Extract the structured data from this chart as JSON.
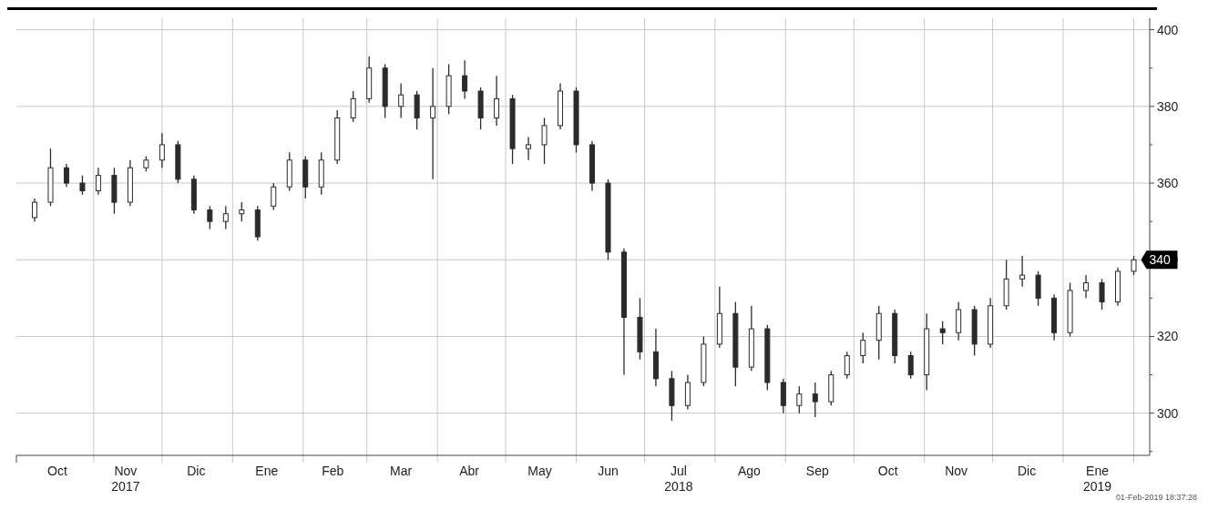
{
  "chart_data": {
    "type": "candlestick",
    "color": "#2b2b2b",
    "grid": true,
    "xlim": [
      "2017-09-28",
      "2019-02-08"
    ],
    "ylim": [
      289,
      403
    ],
    "yticks": [
      {
        "value": 290,
        "label": null
      },
      300,
      {
        "value": 310,
        "label": null
      },
      320,
      {
        "value": 330,
        "label": null
      },
      340,
      {
        "value": 350,
        "label": null
      },
      360,
      {
        "value": 370,
        "label": null
      },
      380,
      {
        "value": 390,
        "label": null
      },
      400
    ],
    "xticks": [
      {
        "value": "2017-10-16",
        "label": "Oct"
      },
      {
        "value": "2017-11-01",
        "label": null
      },
      {
        "value": "2017-11-15",
        "label": "Nov\n2017"
      },
      {
        "value": "2017-12-01",
        "label": null
      },
      {
        "value": "2017-12-16",
        "label": "Dic"
      },
      {
        "value": "2018-01-01",
        "label": null
      },
      {
        "value": "2018-01-16",
        "label": "Ene"
      },
      {
        "value": "2018-02-01",
        "label": null
      },
      {
        "value": "2018-02-14",
        "label": "Feb"
      },
      {
        "value": "2018-03-01",
        "label": null
      },
      {
        "value": "2018-03-16",
        "label": "Mar"
      },
      {
        "value": "2018-04-01",
        "label": null
      },
      {
        "value": "2018-04-15",
        "label": "Abr"
      },
      {
        "value": "2018-05-01",
        "label": null
      },
      {
        "value": "2018-05-16",
        "label": "May"
      },
      {
        "value": "2018-06-01",
        "label": null
      },
      {
        "value": "2018-06-15",
        "label": "Jun"
      },
      {
        "value": "2018-07-01",
        "label": null
      },
      {
        "value": "2018-07-16",
        "label": "Jul\n2018"
      },
      {
        "value": "2018-08-01",
        "label": null
      },
      {
        "value": "2018-08-16",
        "label": "Ago"
      },
      {
        "value": "2018-09-01",
        "label": null
      },
      {
        "value": "2018-09-15",
        "label": "Sep"
      },
      {
        "value": "2018-10-01",
        "label": null
      },
      {
        "value": "2018-10-16",
        "label": "Oct"
      },
      {
        "value": "2018-11-01",
        "label": null
      },
      {
        "value": "2018-11-15",
        "label": "Nov"
      },
      {
        "value": "2018-12-01",
        "label": null
      },
      {
        "value": "2018-12-16",
        "label": "Dic"
      },
      {
        "value": "2019-01-01",
        "label": null
      },
      {
        "value": "2019-01-16",
        "label": "Ene\n2019"
      },
      {
        "value": "2019-02-01",
        "label": null
      }
    ],
    "annotations": [
      {
        "text": "340",
        "x": "2019-02-01",
        "y": 340
      },
      "01-Feb-2019 18:37:28"
    ],
    "x": [
      "2017-10-06",
      "2017-10-13",
      "2017-10-20",
      "2017-10-27",
      "2017-11-03",
      "2017-11-10",
      "2017-11-17",
      "2017-11-24",
      "2017-12-01",
      "2017-12-08",
      "2017-12-15",
      "2017-12-22",
      "2017-12-29",
      "2018-01-05",
      "2018-01-12",
      "2018-01-19",
      "2018-01-26",
      "2018-02-02",
      "2018-02-09",
      "2018-02-16",
      "2018-02-23",
      "2018-03-02",
      "2018-03-09",
      "2018-03-16",
      "2018-03-23",
      "2018-03-30",
      "2018-04-06",
      "2018-04-13",
      "2018-04-20",
      "2018-04-27",
      "2018-05-04",
      "2018-05-11",
      "2018-05-18",
      "2018-05-25",
      "2018-06-01",
      "2018-06-08",
      "2018-06-15",
      "2018-06-22",
      "2018-06-29",
      "2018-07-06",
      "2018-07-13",
      "2018-07-20",
      "2018-07-27",
      "2018-08-03",
      "2018-08-10",
      "2018-08-17",
      "2018-08-24",
      "2018-08-31",
      "2018-09-07",
      "2018-09-14",
      "2018-09-21",
      "2018-09-28",
      "2018-10-05",
      "2018-10-12",
      "2018-10-19",
      "2018-10-26",
      "2018-11-02",
      "2018-11-09",
      "2018-11-16",
      "2018-11-23",
      "2018-11-30",
      "2018-12-07",
      "2018-12-14",
      "2018-12-21",
      "2018-12-28",
      "2019-01-04",
      "2019-01-11",
      "2019-01-18",
      "2019-01-25",
      "2019-02-01"
    ],
    "ohlc": [
      [
        351,
        356,
        350,
        355
      ],
      [
        355,
        369,
        354,
        364
      ],
      [
        364,
        365,
        359,
        360
      ],
      [
        360,
        362,
        357,
        358
      ],
      [
        358,
        364,
        357,
        362
      ],
      [
        362,
        364,
        352,
        355
      ],
      [
        355,
        366,
        354,
        364
      ],
      [
        364,
        367,
        363,
        366
      ],
      [
        366,
        373,
        364,
        370
      ],
      [
        370,
        371,
        360,
        361
      ],
      [
        361,
        362,
        352,
        353
      ],
      [
        353,
        354,
        348,
        350
      ],
      [
        350,
        354,
        348,
        352
      ],
      [
        352,
        355,
        350,
        353
      ],
      [
        353,
        354,
        345,
        346
      ],
      [
        354,
        360,
        353,
        359
      ],
      [
        359,
        368,
        358,
        366
      ],
      [
        366,
        367,
        356,
        359
      ],
      [
        359,
        368,
        357,
        366
      ],
      [
        366,
        379,
        365,
        377
      ],
      [
        377,
        384,
        376,
        382
      ],
      [
        382,
        393,
        381,
        390
      ],
      [
        390,
        391,
        377,
        380
      ],
      [
        380,
        386,
        377,
        383
      ],
      [
        383,
        384,
        374,
        377
      ],
      [
        377,
        390,
        361,
        380
      ],
      [
        380,
        391,
        378,
        388
      ],
      [
        388,
        392,
        382,
        384
      ],
      [
        384,
        385,
        374,
        377
      ],
      [
        377,
        388,
        375,
        382
      ],
      [
        382,
        383,
        365,
        369
      ],
      [
        369,
        372,
        366,
        370
      ],
      [
        370,
        377,
        365,
        375
      ],
      [
        375,
        386,
        374,
        384
      ],
      [
        384,
        385,
        368,
        370
      ],
      [
        370,
        371,
        358,
        360
      ],
      [
        360,
        361,
        340,
        342
      ],
      [
        342,
        343,
        310,
        325
      ],
      [
        325,
        330,
        314,
        316
      ],
      [
        316,
        322,
        307,
        309
      ],
      [
        309,
        311,
        298,
        302
      ],
      [
        302,
        310,
        301,
        308
      ],
      [
        308,
        320,
        307,
        318
      ],
      [
        318,
        333,
        317,
        326
      ],
      [
        326,
        329,
        307,
        312
      ],
      [
        312,
        328,
        311,
        322
      ],
      [
        322,
        323,
        306,
        308
      ],
      [
        308,
        309,
        300,
        302
      ],
      [
        302,
        307,
        300,
        305
      ],
      [
        305,
        308,
        299,
        303
      ],
      [
        303,
        311,
        302,
        310
      ],
      [
        310,
        316,
        309,
        315
      ],
      [
        315,
        321,
        313,
        319
      ],
      [
        319,
        328,
        314,
        326
      ],
      [
        326,
        327,
        313,
        315
      ],
      [
        315,
        316,
        309,
        310
      ],
      [
        310,
        326,
        306,
        322
      ],
      [
        322,
        324,
        318,
        321
      ],
      [
        321,
        329,
        319,
        327
      ],
      [
        327,
        328,
        315,
        318
      ],
      [
        318,
        330,
        317,
        328
      ],
      [
        328,
        340,
        327,
        335
      ],
      [
        335,
        341,
        333,
        336
      ],
      [
        336,
        337,
        328,
        330
      ],
      [
        330,
        331,
        319,
        321
      ],
      [
        321,
        334,
        320,
        332
      ],
      [
        332,
        336,
        330,
        334
      ],
      [
        334,
        335,
        327,
        329
      ],
      [
        329,
        338,
        328,
        337
      ],
      [
        337,
        341,
        336,
        340
      ]
    ]
  }
}
